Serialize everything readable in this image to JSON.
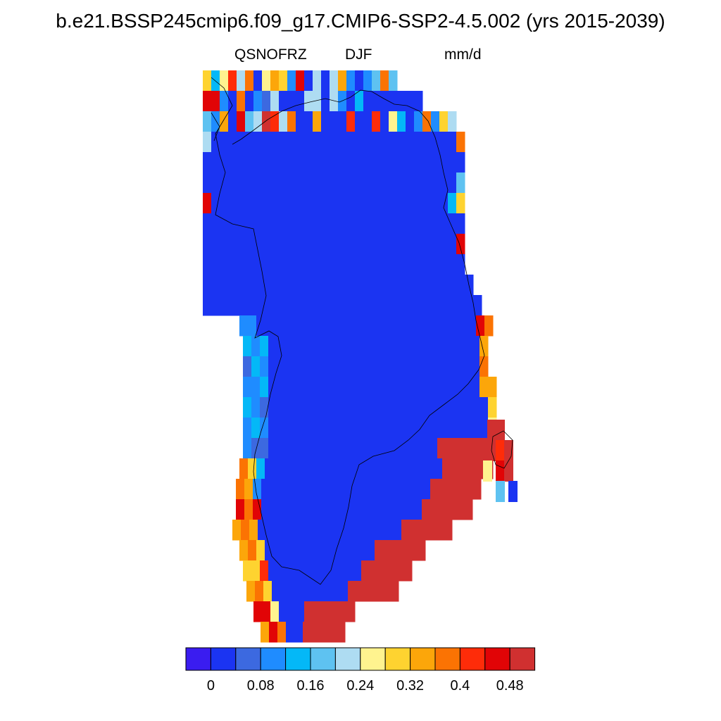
{
  "title": "b.e21.BSSP245cmip6.f09_g17.CMIP6-SSP2-4.5.002 (yrs 2015-2039)",
  "subtitle": {
    "variable": "QSNOFRZ",
    "season": "DJF",
    "units": "mm/d"
  },
  "colorbar": {
    "colors": [
      "#3a1cf0",
      "#1b34f2",
      "#3c69e0",
      "#1f8cff",
      "#04b8f7",
      "#5ec2f1",
      "#aedcf2",
      "#fff38f",
      "#fed330",
      "#fca60a",
      "#fb7303",
      "#fe2c09",
      "#e10406",
      "#d03030"
    ],
    "tick_labels": [
      "0",
      "0.08",
      "0.16",
      "0.24",
      "0.32",
      "0.4",
      "0.48"
    ]
  },
  "chart_data": {
    "type": "heatmap",
    "title": "b.e21.BSSP245cmip6.f09_g17.CMIP6-SSP2-4.5.002 (yrs 2015-2039)",
    "variable": "QSNOFRZ",
    "season": "DJF",
    "units": "mm/d",
    "region": "Greenland",
    "color_levels": [
      0,
      0.04,
      0.08,
      0.12,
      0.16,
      0.2,
      0.24,
      0.28,
      0.32,
      0.36,
      0.4,
      0.44,
      0.48
    ],
    "interior_value": 0.02,
    "coastal_values": {
      "north": "mixed 0-0.5",
      "west_central": "0.04-0.12",
      "southwest": "0.2-0.5",
      "southeast": "0.48",
      "east_central": "0.1-0.5"
    }
  }
}
